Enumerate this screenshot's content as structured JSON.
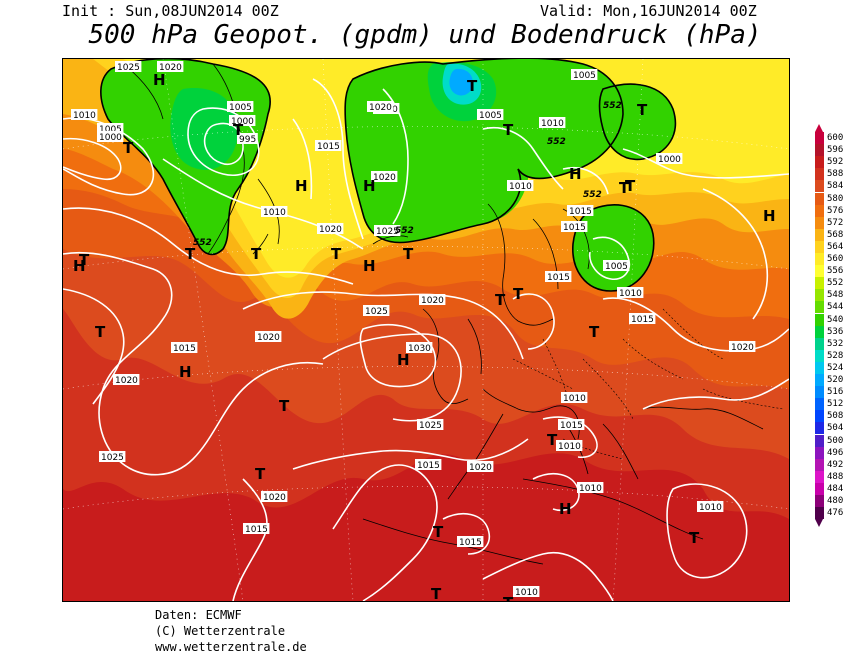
{
  "header": {
    "init": "Init : Sun,08JUN2014 00Z",
    "valid": "Valid: Mon,16JUN2014 00Z",
    "title": "500 hPa Geopot. (gpdm) und Bodendruck (hPa)"
  },
  "legend": {
    "levels": [
      "600",
      "596",
      "592",
      "588",
      "584",
      "580",
      "576",
      "572",
      "568",
      "564",
      "560",
      "556",
      "552",
      "548",
      "544",
      "540",
      "536",
      "532",
      "528",
      "524",
      "520",
      "516",
      "512",
      "508",
      "504",
      "500",
      "496",
      "492",
      "488",
      "484",
      "480",
      "476"
    ],
    "colors": [
      "#c8003c",
      "#b4122a",
      "#c81c1c",
      "#d2321e",
      "#dc4b1e",
      "#e65a14",
      "#f06e0f",
      "#f58c0f",
      "#fab414",
      "#ffd21e",
      "#ffeb28",
      "#ffff32",
      "#c8f000",
      "#96e600",
      "#64dc00",
      "#32d200",
      "#00d23c",
      "#00d28c",
      "#00dcc8",
      "#00c8f0",
      "#00aaff",
      "#008cff",
      "#0064ff",
      "#0046ff",
      "#1e28e6",
      "#501ec8",
      "#8c14be",
      "#b414b4",
      "#dc14c8",
      "#c800aa",
      "#8c0078",
      "#50004b"
    ]
  },
  "pressure_labels": [
    {
      "text": "1010"
    },
    {
      "text": "1005"
    },
    {
      "text": "1000"
    },
    {
      "text": "1005"
    },
    {
      "text": "1000"
    },
    {
      "text": "995"
    },
    {
      "text": "1020"
    },
    {
      "text": "1015"
    },
    {
      "text": "1010"
    },
    {
      "text": "1025"
    },
    {
      "text": "1020"
    },
    {
      "text": "1005"
    },
    {
      "text": "1010"
    },
    {
      "text": "1005"
    },
    {
      "text": "1000"
    },
    {
      "text": "1015"
    },
    {
      "text": "1010"
    },
    {
      "text": "1015"
    },
    {
      "text": "1020"
    },
    {
      "text": "1020"
    },
    {
      "text": "1025"
    },
    {
      "text": "1020"
    },
    {
      "text": "1005"
    },
    {
      "text": "1010"
    },
    {
      "text": "1015"
    },
    {
      "text": "1025"
    },
    {
      "text": "1020"
    },
    {
      "text": "1030"
    },
    {
      "text": "1020"
    },
    {
      "text": "1015"
    },
    {
      "text": "1025"
    },
    {
      "text": "1015"
    },
    {
      "text": "1020"
    },
    {
      "text": "1010"
    },
    {
      "text": "1010"
    },
    {
      "text": "1015"
    },
    {
      "text": "1015"
    },
    {
      "text": "1025"
    },
    {
      "text": "1020"
    },
    {
      "text": "1020"
    },
    {
      "text": "1015"
    },
    {
      "text": "1010"
    },
    {
      "text": "1010"
    },
    {
      "text": "1015"
    },
    {
      "text": "1020"
    },
    {
      "text": "1010"
    }
  ],
  "geopot_labels": [
    {
      "text": "552"
    },
    {
      "text": "552"
    },
    {
      "text": "552"
    },
    {
      "text": "552"
    },
    {
      "text": "552"
    }
  ],
  "centers": [
    {
      "text": "H"
    },
    {
      "text": "T"
    },
    {
      "text": "T"
    },
    {
      "text": "T"
    },
    {
      "text": "H"
    },
    {
      "text": "T"
    },
    {
      "text": "T"
    },
    {
      "text": "T"
    },
    {
      "text": "T"
    },
    {
      "text": "H"
    },
    {
      "text": "H"
    },
    {
      "text": "T"
    },
    {
      "text": "H"
    },
    {
      "text": "T"
    },
    {
      "text": "T"
    },
    {
      "text": "T"
    },
    {
      "text": "H"
    },
    {
      "text": "T"
    },
    {
      "text": "H"
    },
    {
      "text": "T"
    },
    {
      "text": "T"
    },
    {
      "text": "T"
    },
    {
      "text": "T"
    },
    {
      "text": "H"
    },
    {
      "text": "T"
    },
    {
      "text": "H"
    },
    {
      "text": "T"
    },
    {
      "text": "H"
    },
    {
      "text": "T"
    },
    {
      "text": "T"
    },
    {
      "text": "T"
    },
    {
      "text": "T"
    },
    {
      "text": "T"
    }
  ],
  "footer": {
    "line1": "Daten: ECMWF",
    "line2": "(C) Wetterzentrale",
    "line3": "www.wetterzentrale.de"
  }
}
